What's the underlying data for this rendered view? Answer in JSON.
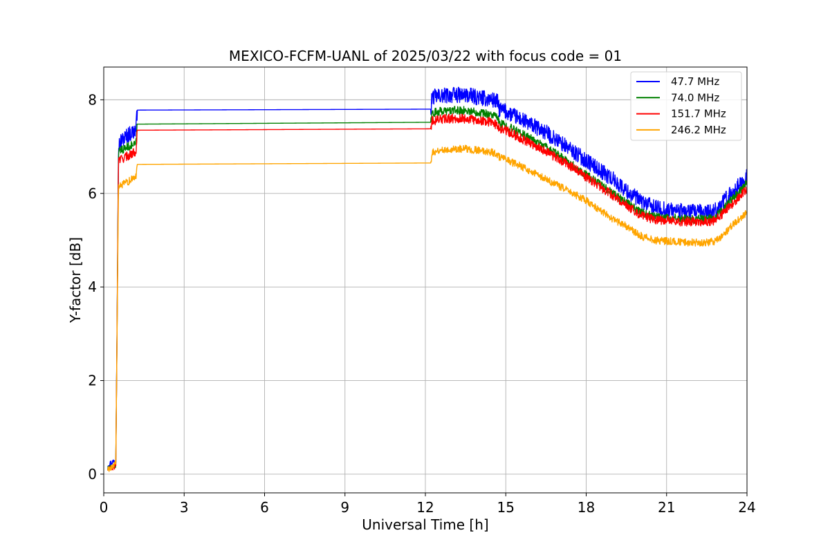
{
  "chart_data": {
    "type": "line",
    "title": "MEXICO-FCFM-UANL of 2025/03/22 with focus code = 01",
    "xlabel": "Universal Time [h]",
    "ylabel": "Y-factor [dB]",
    "xlim": [
      0,
      24
    ],
    "ylim": [
      -0.4,
      8.7
    ],
    "xticks": [
      "0",
      "3",
      "6",
      "9",
      "12",
      "15",
      "18",
      "21",
      "24"
    ],
    "yticks": [
      "0",
      "2",
      "4",
      "6",
      "8"
    ],
    "grid": true,
    "legend_position": "top-right",
    "x": [
      0.15,
      0.3,
      0.45,
      0.5,
      0.55,
      0.6,
      0.9,
      1.2,
      1.25,
      12.2,
      12.25,
      12.5,
      13.0,
      13.5,
      14.0,
      14.5,
      14.7,
      14.75,
      15.0,
      15.5,
      16.0,
      16.5,
      17.0,
      17.5,
      18.0,
      18.5,
      19.0,
      19.5,
      20.0,
      20.5,
      21.0,
      21.5,
      22.0,
      22.5,
      22.8,
      23.0,
      23.5,
      24.0
    ],
    "series": [
      {
        "name": " 47.7 MHz",
        "color": "#0000ff",
        "noise": 0.17,
        "values": [
          0.2,
          0.25,
          0.3,
          3.4,
          7.0,
          7.1,
          7.25,
          7.35,
          7.78,
          7.8,
          8.05,
          8.08,
          8.1,
          8.1,
          8.05,
          8.0,
          7.95,
          7.8,
          7.75,
          7.6,
          7.45,
          7.3,
          7.1,
          6.9,
          6.7,
          6.5,
          6.3,
          6.05,
          5.85,
          5.7,
          5.65,
          5.62,
          5.6,
          5.6,
          5.62,
          5.75,
          6.05,
          6.35
        ]
      },
      {
        "name": " 74.0 MHz",
        "color": "#008000",
        "noise": 0.09,
        "values": [
          0.12,
          0.15,
          0.2,
          3.3,
          6.85,
          6.9,
          7.0,
          7.05,
          7.48,
          7.52,
          7.72,
          7.75,
          7.77,
          7.77,
          7.73,
          7.68,
          7.62,
          7.5,
          7.45,
          7.3,
          7.15,
          7.0,
          6.8,
          6.6,
          6.4,
          6.2,
          6.0,
          5.8,
          5.6,
          5.5,
          5.48,
          5.47,
          5.45,
          5.45,
          5.48,
          5.6,
          5.9,
          6.25
        ]
      },
      {
        "name": " 151.7 MHz",
        "color": "#ff0000",
        "noise": 0.1,
        "values": [
          0.1,
          0.13,
          0.18,
          3.3,
          6.7,
          6.72,
          6.8,
          6.9,
          7.35,
          7.38,
          7.55,
          7.58,
          7.6,
          7.6,
          7.56,
          7.52,
          7.45,
          7.4,
          7.35,
          7.2,
          7.05,
          6.9,
          6.72,
          6.55,
          6.35,
          6.15,
          5.95,
          5.75,
          5.55,
          5.45,
          5.42,
          5.4,
          5.4,
          5.4,
          5.42,
          5.52,
          5.8,
          6.1
        ]
      },
      {
        "name": " 246.2 MHz",
        "color": "#ffa500",
        "noise": 0.08,
        "values": [
          0.1,
          0.15,
          0.25,
          3.2,
          6.1,
          6.15,
          6.25,
          6.35,
          6.62,
          6.65,
          6.88,
          6.92,
          6.95,
          6.95,
          6.92,
          6.88,
          6.82,
          6.78,
          6.72,
          6.6,
          6.45,
          6.3,
          6.15,
          6.0,
          5.85,
          5.65,
          5.45,
          5.3,
          5.1,
          5.0,
          4.98,
          4.96,
          4.95,
          4.95,
          4.98,
          5.05,
          5.35,
          5.6
        ]
      }
    ],
    "steady_segments": [
      [
        1.25,
        12.2
      ]
    ]
  }
}
